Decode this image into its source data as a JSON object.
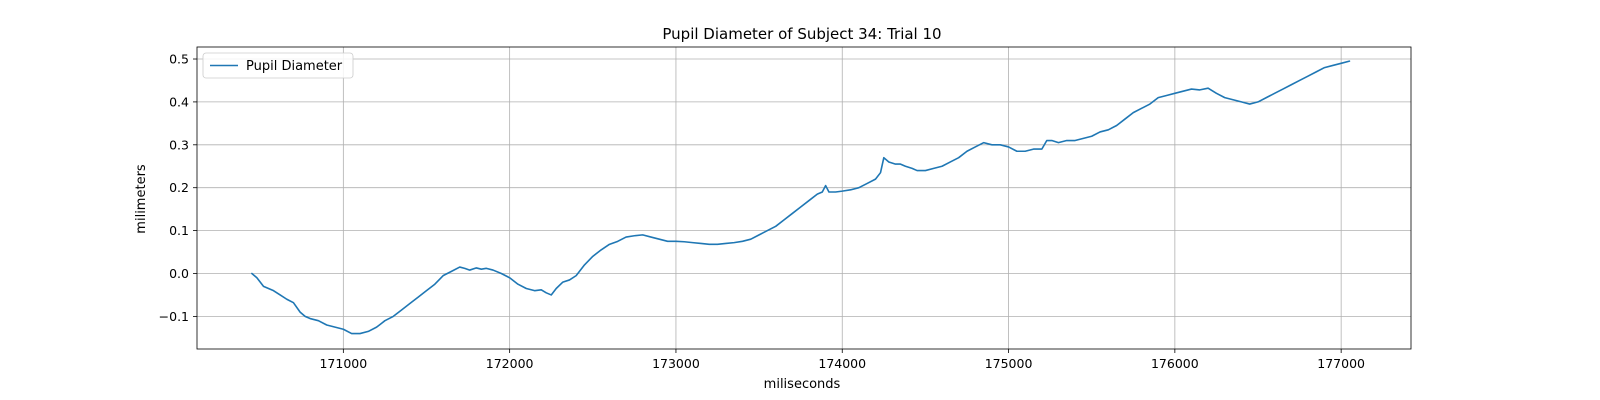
{
  "chart_data": {
    "type": "line",
    "title": "Pupil Diameter of Subject 34: Trial 10",
    "xlabel": "miliseconds",
    "ylabel": "milimeters",
    "xlim": [
      170120,
      177420
    ],
    "ylim": [
      -0.176,
      0.528
    ],
    "xticks": [
      171000,
      172000,
      173000,
      174000,
      175000,
      176000,
      177000
    ],
    "yticks": [
      -0.1,
      0.0,
      0.1,
      0.2,
      0.3,
      0.4,
      0.5
    ],
    "xtick_labels": [
      "171000",
      "172000",
      "173000",
      "174000",
      "175000",
      "176000",
      "177000"
    ],
    "ytick_labels": [
      "−0.1",
      "0.0",
      "0.1",
      "0.2",
      "0.3",
      "0.4",
      "0.5"
    ],
    "grid": true,
    "legend": {
      "position": "top-left",
      "entries": [
        "Pupil Diameter"
      ]
    },
    "series": [
      {
        "name": "Pupil Diameter",
        "color": "#1f77b4",
        "x": [
          170450,
          170480,
          170520,
          170550,
          170580,
          170620,
          170660,
          170700,
          170740,
          170770,
          170800,
          170850,
          170900,
          170950,
          171000,
          171050,
          171100,
          171150,
          171200,
          171250,
          171300,
          171350,
          171400,
          171450,
          171500,
          171550,
          171600,
          171650,
          171700,
          171730,
          171760,
          171800,
          171830,
          171860,
          171900,
          171950,
          172000,
          172050,
          172100,
          172150,
          172190,
          172220,
          172250,
          172280,
          172320,
          172360,
          172400,
          172450,
          172500,
          172550,
          172600,
          172650,
          172700,
          172750,
          172800,
          172850,
          172900,
          172950,
          173000,
          173050,
          173100,
          173150,
          173200,
          173250,
          173300,
          173350,
          173400,
          173450,
          173500,
          173550,
          173600,
          173650,
          173700,
          173750,
          173800,
          173850,
          173880,
          173900,
          173920,
          173960,
          174000,
          174050,
          174100,
          174150,
          174200,
          174230,
          174250,
          174280,
          174320,
          174350,
          174380,
          174420,
          174450,
          174500,
          174550,
          174600,
          174650,
          174700,
          174750,
          174800,
          174850,
          174900,
          174950,
          175000,
          175050,
          175100,
          175150,
          175200,
          175230,
          175260,
          175300,
          175350,
          175400,
          175450,
          175500,
          175550,
          175600,
          175650,
          175700,
          175750,
          175800,
          175850,
          175900,
          175950,
          176000,
          176050,
          176100,
          176150,
          176200,
          176250,
          176300,
          176350,
          176400,
          176450,
          176500,
          176550,
          176600,
          176650,
          176700,
          176750,
          176800,
          176850,
          176900,
          176950,
          177000,
          177050
        ],
        "values": [
          0.0,
          -0.01,
          -0.03,
          -0.035,
          -0.04,
          -0.05,
          -0.06,
          -0.068,
          -0.09,
          -0.1,
          -0.105,
          -0.11,
          -0.12,
          -0.125,
          -0.13,
          -0.14,
          -0.14,
          -0.135,
          -0.125,
          -0.11,
          -0.1,
          -0.085,
          -0.07,
          -0.055,
          -0.04,
          -0.025,
          -0.005,
          0.005,
          0.015,
          0.012,
          0.008,
          0.013,
          0.01,
          0.012,
          0.008,
          0.0,
          -0.01,
          -0.025,
          -0.035,
          -0.04,
          -0.038,
          -0.045,
          -0.05,
          -0.035,
          -0.02,
          -0.015,
          -0.005,
          0.02,
          0.04,
          0.055,
          0.068,
          0.075,
          0.085,
          0.088,
          0.09,
          0.085,
          0.08,
          0.075,
          0.075,
          0.074,
          0.072,
          0.07,
          0.068,
          0.068,
          0.07,
          0.072,
          0.075,
          0.08,
          0.09,
          0.1,
          0.11,
          0.125,
          0.14,
          0.155,
          0.17,
          0.185,
          0.19,
          0.205,
          0.19,
          0.19,
          0.192,
          0.195,
          0.2,
          0.21,
          0.22,
          0.235,
          0.27,
          0.26,
          0.255,
          0.255,
          0.25,
          0.245,
          0.24,
          0.24,
          0.245,
          0.25,
          0.26,
          0.27,
          0.285,
          0.295,
          0.305,
          0.3,
          0.3,
          0.295,
          0.285,
          0.285,
          0.29,
          0.29,
          0.31,
          0.31,
          0.305,
          0.31,
          0.31,
          0.315,
          0.32,
          0.33,
          0.335,
          0.345,
          0.36,
          0.375,
          0.385,
          0.395,
          0.41,
          0.415,
          0.42,
          0.425,
          0.43,
          0.428,
          0.432,
          0.42,
          0.41,
          0.405,
          0.4,
          0.395,
          0.4,
          0.41,
          0.42,
          0.43,
          0.44,
          0.45,
          0.46,
          0.47,
          0.48,
          0.485,
          0.49,
          0.495
        ]
      }
    ]
  }
}
